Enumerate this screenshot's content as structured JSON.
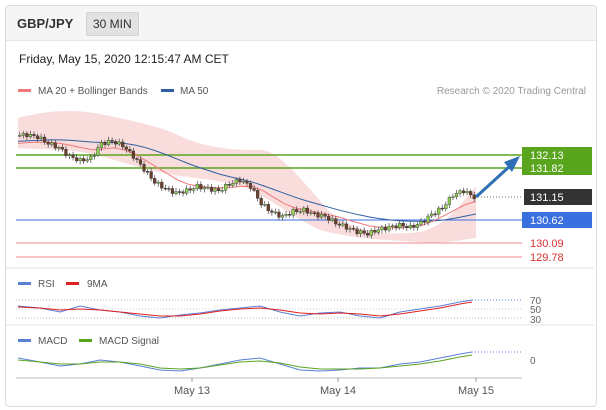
{
  "header": {
    "symbol": "GBP/JPY",
    "timeframe": "30 MIN"
  },
  "datetime": "Friday, May 15, 2020 12:15:47 AM CET",
  "legend": {
    "ma20": "MA 20 + Bollinger Bands",
    "ma50": "MA 50",
    "credit": "Research © 2020 Trading Central",
    "rsi": "RSI",
    "rsi_ma": "9MA",
    "macd": "MACD",
    "macd_signal": "MACD Signal"
  },
  "colors": {
    "ma20": "#f07878",
    "ma50": "#2f5f9e",
    "target": "#5aa51e",
    "pivot": "#3a6fe0",
    "support": "#e64545",
    "last": "#333333",
    "arrow": "#2f6fb5"
  },
  "levels": [
    {
      "id": "resistance-2",
      "value": 132.13,
      "label": "132.13",
      "kind": "target"
    },
    {
      "id": "resistance-1",
      "value": 131.82,
      "label": "131.82",
      "kind": "target"
    },
    {
      "id": "last-price",
      "value": 131.15,
      "label": "131.15",
      "kind": "last"
    },
    {
      "id": "pivot",
      "value": 130.62,
      "label": "130.62",
      "kind": "pivot"
    },
    {
      "id": "support-1",
      "value": 130.09,
      "label": "130.09",
      "kind": "support"
    },
    {
      "id": "support-2",
      "value": 129.78,
      "label": "129.78",
      "kind": "support"
    }
  ],
  "rsi_axis": [
    "70",
    "50",
    "30"
  ],
  "macd_axis": [
    "0"
  ],
  "x_ticks": [
    "May 13",
    "May 14",
    "May 15"
  ],
  "chart_data": {
    "type": "line",
    "title": "",
    "xlabel": "",
    "ylabel": "",
    "x_ticks": [
      "May 13",
      "May 14",
      "May 15"
    ],
    "ylim": [
      129.4,
      133.4
    ],
    "series": [
      {
        "name": "",
        "values": [
          132.58,
          132.6,
          132.55,
          132.4,
          132.3,
          132.1,
          132.0,
          132.05,
          132.4,
          132.45,
          132.35,
          132.1,
          131.8,
          131.5,
          131.35,
          131.25,
          131.3,
          131.4,
          131.35,
          131.3,
          131.45,
          131.55,
          131.4,
          131.0,
          130.8,
          130.7,
          130.82,
          130.85,
          130.75,
          130.7,
          130.55,
          130.45,
          130.35,
          130.3,
          130.4,
          130.45,
          130.5,
          130.45,
          130.55,
          130.75,
          130.9,
          131.2,
          131.3,
          131.15
        ]
      },
      {
        "name": "MA 20",
        "values": [
          132.4,
          132.42,
          132.43,
          132.42,
          132.4,
          132.35,
          132.3,
          132.25,
          132.27,
          132.3,
          132.25,
          132.15,
          132.0,
          131.85,
          131.7,
          131.55,
          131.45,
          131.4,
          131.38,
          131.37,
          131.38,
          131.4,
          131.4,
          131.3,
          131.15,
          131.0,
          130.9,
          130.85,
          130.8,
          130.75,
          130.7,
          130.62,
          130.55,
          130.48,
          130.45,
          130.44,
          130.44,
          130.45,
          130.5,
          130.6,
          130.72,
          130.85,
          130.98,
          131.05
        ]
      },
      {
        "name": "MA 50",
        "values": [
          132.45,
          132.46,
          132.47,
          132.48,
          132.48,
          132.47,
          132.45,
          132.43,
          132.42,
          132.42,
          132.4,
          132.36,
          132.3,
          132.22,
          132.13,
          132.03,
          131.93,
          131.84,
          131.76,
          131.68,
          131.62,
          131.56,
          131.5,
          131.42,
          131.33,
          131.24,
          131.15,
          131.07,
          131.0,
          130.93,
          130.86,
          130.8,
          130.74,
          130.69,
          130.65,
          130.62,
          130.6,
          130.59,
          130.59,
          130.6,
          130.62,
          130.66,
          130.71,
          130.76
        ]
      }
    ]
  }
}
